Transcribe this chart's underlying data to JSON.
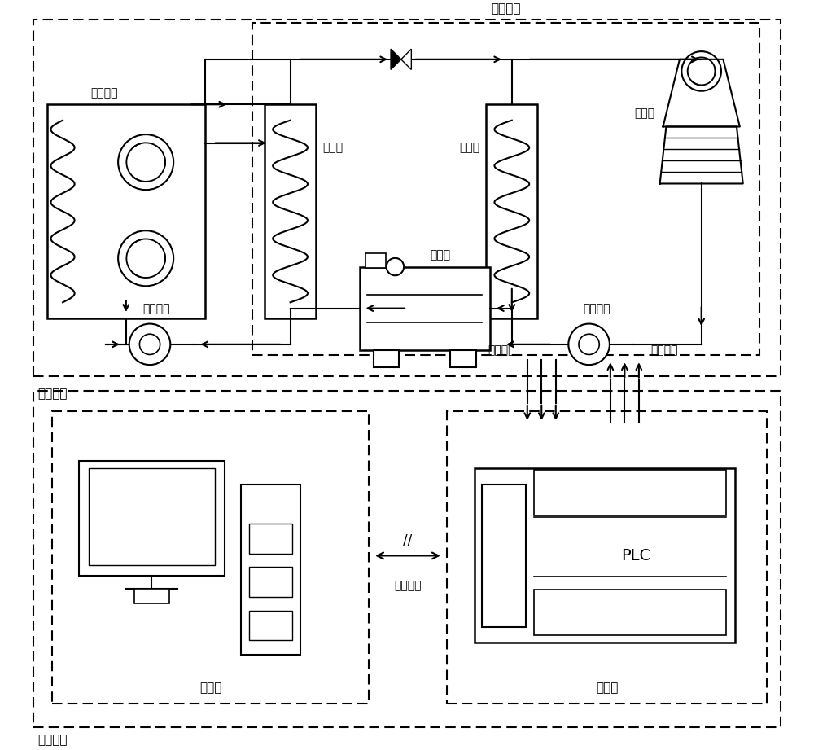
{
  "bg_color": "#ffffff",
  "line_color": "#000000",
  "labels": {
    "leng_shui_ji_zu": "冷水机组",
    "feng_ji_pan_guan": "风机盘管",
    "zheng_fa_qi": "蜆发器",
    "leng_ning_qi": "冷凝器",
    "leng_que_ta": "冷却塔",
    "ya_suo_ji": "压缩机",
    "leng_dong_shui_beng": "冷冻水泵",
    "leng_que_shui_beng": "冷却水泵",
    "zhong_yang_kong_tiao": "中央空调",
    "jian_ce_shu_ju": "检测数据",
    "kong_zhi_xin_hao": "控制信号",
    "shang_wei_ji": "上位机",
    "xia_wei_ji": "下位机",
    "plc": "PLC",
    "serial_comm": "串口通信",
    "kong_zhi_xi_tong": "控制系统"
  },
  "figsize": [
    10.0,
    9.21
  ],
  "dpi": 100
}
